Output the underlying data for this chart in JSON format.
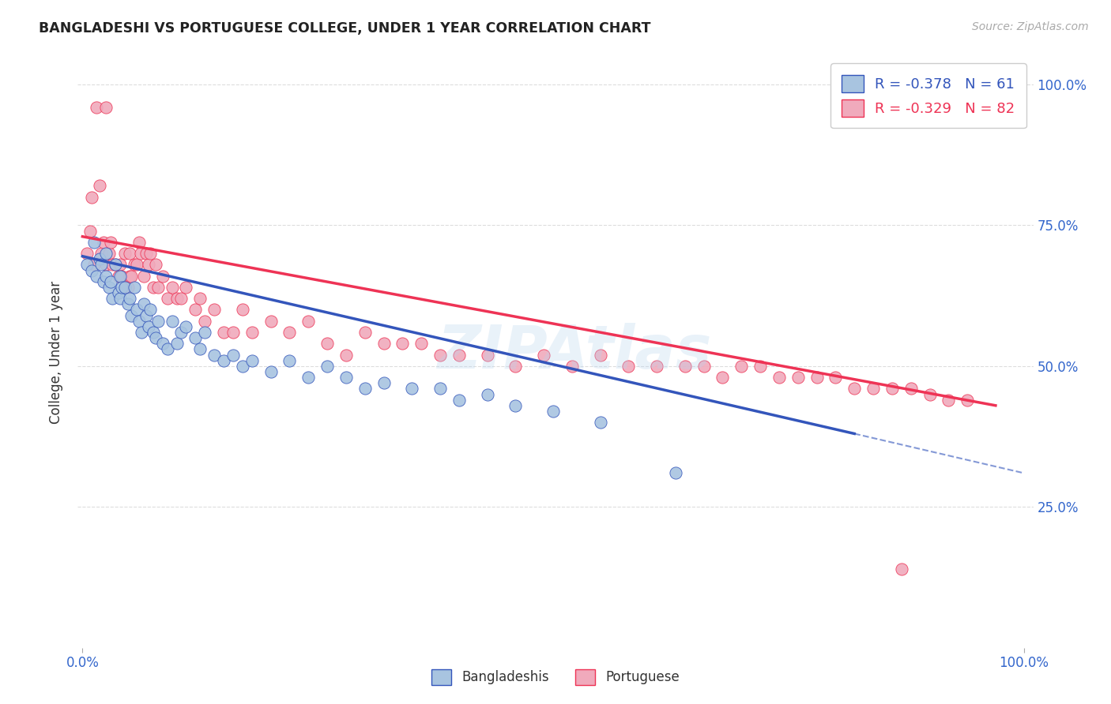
{
  "title": "BANGLADESHI VS PORTUGUESE COLLEGE, UNDER 1 YEAR CORRELATION CHART",
  "source": "Source: ZipAtlas.com",
  "ylabel": "College, Under 1 year",
  "blue_R": -0.378,
  "blue_N": 61,
  "pink_R": -0.329,
  "pink_N": 82,
  "blue_color": "#A8C4E0",
  "pink_color": "#F0AABC",
  "blue_line_color": "#3355BB",
  "pink_line_color": "#EE3355",
  "bg_color": "#FFFFFF",
  "grid_color": "#DDDDDD",
  "blue_scatter_x": [
    0.005,
    0.01,
    0.012,
    0.015,
    0.018,
    0.02,
    0.022,
    0.025,
    0.025,
    0.028,
    0.03,
    0.032,
    0.035,
    0.038,
    0.04,
    0.04,
    0.042,
    0.045,
    0.048,
    0.05,
    0.052,
    0.055,
    0.058,
    0.06,
    0.063,
    0.065,
    0.068,
    0.07,
    0.072,
    0.075,
    0.078,
    0.08,
    0.085,
    0.09,
    0.095,
    0.1,
    0.105,
    0.11,
    0.12,
    0.125,
    0.13,
    0.14,
    0.15,
    0.16,
    0.17,
    0.18,
    0.2,
    0.22,
    0.24,
    0.26,
    0.28,
    0.3,
    0.32,
    0.35,
    0.38,
    0.4,
    0.43,
    0.46,
    0.5,
    0.55,
    0.63
  ],
  "blue_scatter_y": [
    0.68,
    0.67,
    0.72,
    0.66,
    0.69,
    0.68,
    0.65,
    0.7,
    0.66,
    0.64,
    0.65,
    0.62,
    0.68,
    0.63,
    0.66,
    0.62,
    0.64,
    0.64,
    0.61,
    0.62,
    0.59,
    0.64,
    0.6,
    0.58,
    0.56,
    0.61,
    0.59,
    0.57,
    0.6,
    0.56,
    0.55,
    0.58,
    0.54,
    0.53,
    0.58,
    0.54,
    0.56,
    0.57,
    0.55,
    0.53,
    0.56,
    0.52,
    0.51,
    0.52,
    0.5,
    0.51,
    0.49,
    0.51,
    0.48,
    0.5,
    0.48,
    0.46,
    0.47,
    0.46,
    0.46,
    0.44,
    0.45,
    0.43,
    0.42,
    0.4,
    0.31
  ],
  "pink_scatter_x": [
    0.005,
    0.008,
    0.01,
    0.012,
    0.015,
    0.018,
    0.02,
    0.022,
    0.025,
    0.025,
    0.028,
    0.03,
    0.032,
    0.035,
    0.038,
    0.04,
    0.042,
    0.045,
    0.048,
    0.05,
    0.05,
    0.052,
    0.055,
    0.058,
    0.06,
    0.062,
    0.065,
    0.068,
    0.07,
    0.072,
    0.075,
    0.078,
    0.08,
    0.085,
    0.09,
    0.095,
    0.1,
    0.105,
    0.11,
    0.12,
    0.125,
    0.13,
    0.14,
    0.15,
    0.16,
    0.17,
    0.18,
    0.2,
    0.22,
    0.24,
    0.26,
    0.28,
    0.3,
    0.32,
    0.34,
    0.36,
    0.38,
    0.4,
    0.43,
    0.46,
    0.49,
    0.52,
    0.55,
    0.58,
    0.61,
    0.64,
    0.66,
    0.68,
    0.7,
    0.72,
    0.74,
    0.76,
    0.78,
    0.8,
    0.82,
    0.84,
    0.86,
    0.88,
    0.9,
    0.92,
    0.94,
    0.87
  ],
  "pink_scatter_y": [
    0.7,
    0.74,
    0.8,
    0.68,
    0.96,
    0.82,
    0.7,
    0.72,
    0.96,
    0.68,
    0.7,
    0.72,
    0.68,
    0.68,
    0.66,
    0.68,
    0.66,
    0.7,
    0.64,
    0.66,
    0.7,
    0.66,
    0.68,
    0.68,
    0.72,
    0.7,
    0.66,
    0.7,
    0.68,
    0.7,
    0.64,
    0.68,
    0.64,
    0.66,
    0.62,
    0.64,
    0.62,
    0.62,
    0.64,
    0.6,
    0.62,
    0.58,
    0.6,
    0.56,
    0.56,
    0.6,
    0.56,
    0.58,
    0.56,
    0.58,
    0.54,
    0.52,
    0.56,
    0.54,
    0.54,
    0.54,
    0.52,
    0.52,
    0.52,
    0.5,
    0.52,
    0.5,
    0.52,
    0.5,
    0.5,
    0.5,
    0.5,
    0.48,
    0.5,
    0.5,
    0.48,
    0.48,
    0.48,
    0.48,
    0.46,
    0.46,
    0.46,
    0.46,
    0.45,
    0.44,
    0.44,
    0.14
  ]
}
